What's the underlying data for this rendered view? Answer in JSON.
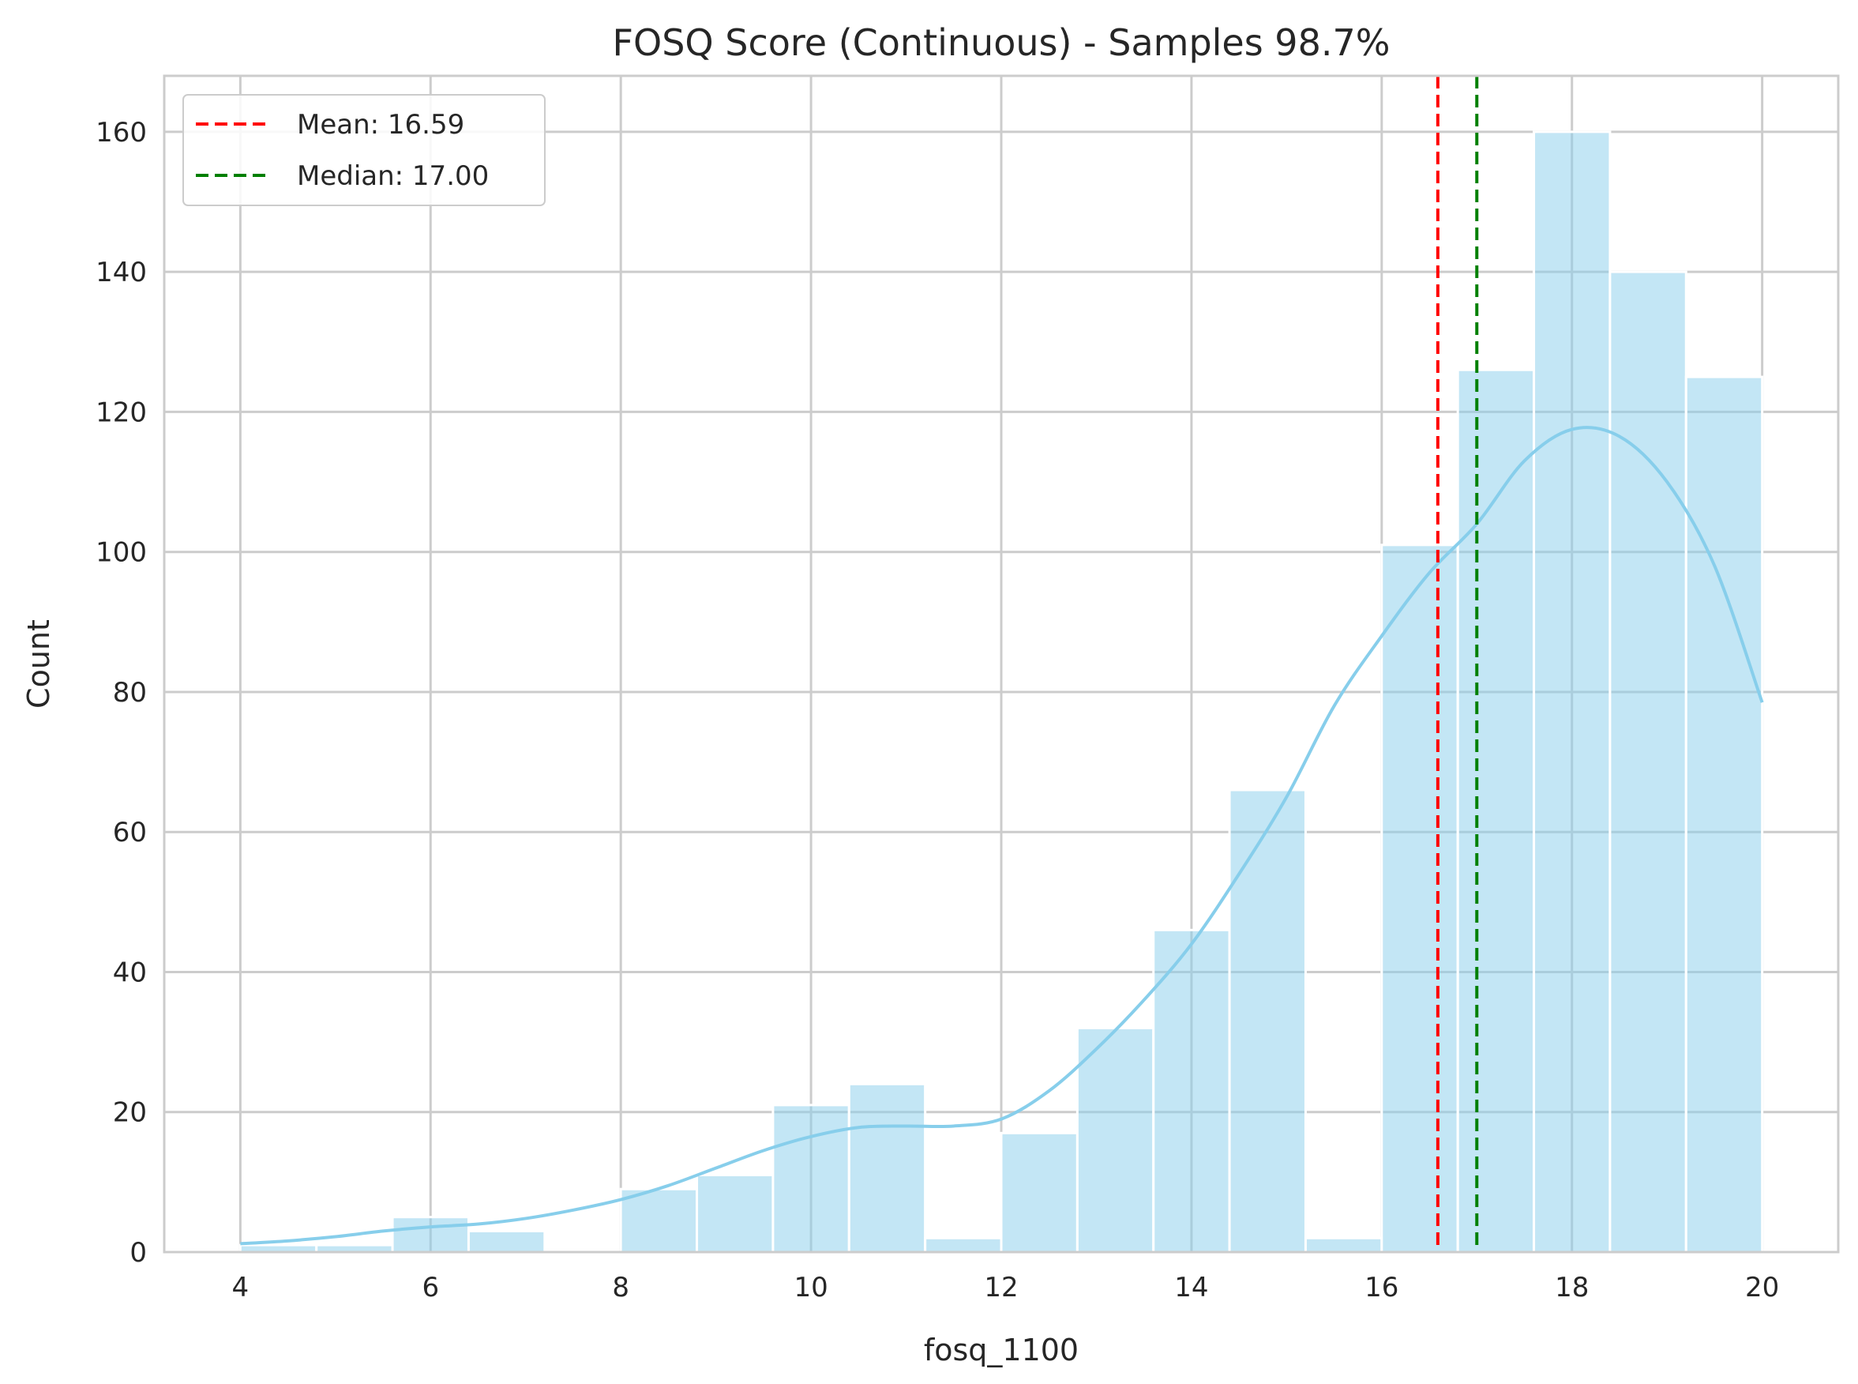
{
  "chart_data": {
    "type": "bar",
    "title": "FOSQ Score (Continuous) - Samples 98.7%",
    "xlabel": "fosq_1100",
    "ylabel": "Count",
    "xlim": [
      3.2,
      20.8
    ],
    "ylim": [
      0,
      168
    ],
    "xticks": [
      4,
      6,
      8,
      10,
      12,
      14,
      16,
      18,
      20
    ],
    "yticks": [
      0,
      20,
      40,
      60,
      80,
      100,
      120,
      140,
      160
    ],
    "grid": true,
    "bin_edges": [
      4,
      4.8,
      5.6,
      6.4,
      7.2,
      8,
      8.8,
      9.6,
      10.4,
      11.2,
      12,
      12.8,
      13.6,
      14.4,
      15.2,
      16,
      16.8,
      17.6,
      18.4,
      19.2,
      20
    ],
    "counts": [
      1,
      1,
      5,
      3,
      0,
      9,
      11,
      21,
      24,
      2,
      17,
      32,
      46,
      66,
      2,
      101,
      126,
      160,
      140,
      125
    ],
    "bar_color": "#87ceeb",
    "kde": {
      "x": [
        4,
        4.5,
        5,
        5.5,
        6,
        6.5,
        7,
        7.5,
        8,
        8.5,
        9,
        9.5,
        10,
        10.5,
        11,
        11.5,
        12,
        12.5,
        13,
        13.5,
        14,
        14.5,
        15,
        15.5,
        16,
        16.5,
        17,
        17.5,
        18,
        18.5,
        19,
        19.5,
        20
      ],
      "y": [
        1.2,
        1.6,
        2.2,
        3.0,
        3.6,
        4.0,
        4.8,
        6.0,
        7.5,
        9.5,
        12.0,
        14.5,
        16.5,
        17.8,
        18.0,
        18.0,
        19.0,
        23.0,
        29.0,
        36.0,
        44.0,
        54.0,
        65.0,
        78.0,
        88.0,
        97.0,
        104.0,
        113.0,
        117.5,
        116.5,
        110.0,
        98.0,
        78.5
      ],
      "color": "#87ceeb"
    },
    "mean": {
      "value": 16.59,
      "label": "Mean: 16.59",
      "color": "#ff0000"
    },
    "median": {
      "value": 17.0,
      "label": "Median: 17.00",
      "color": "#008000"
    },
    "legend_position": "top-left"
  }
}
